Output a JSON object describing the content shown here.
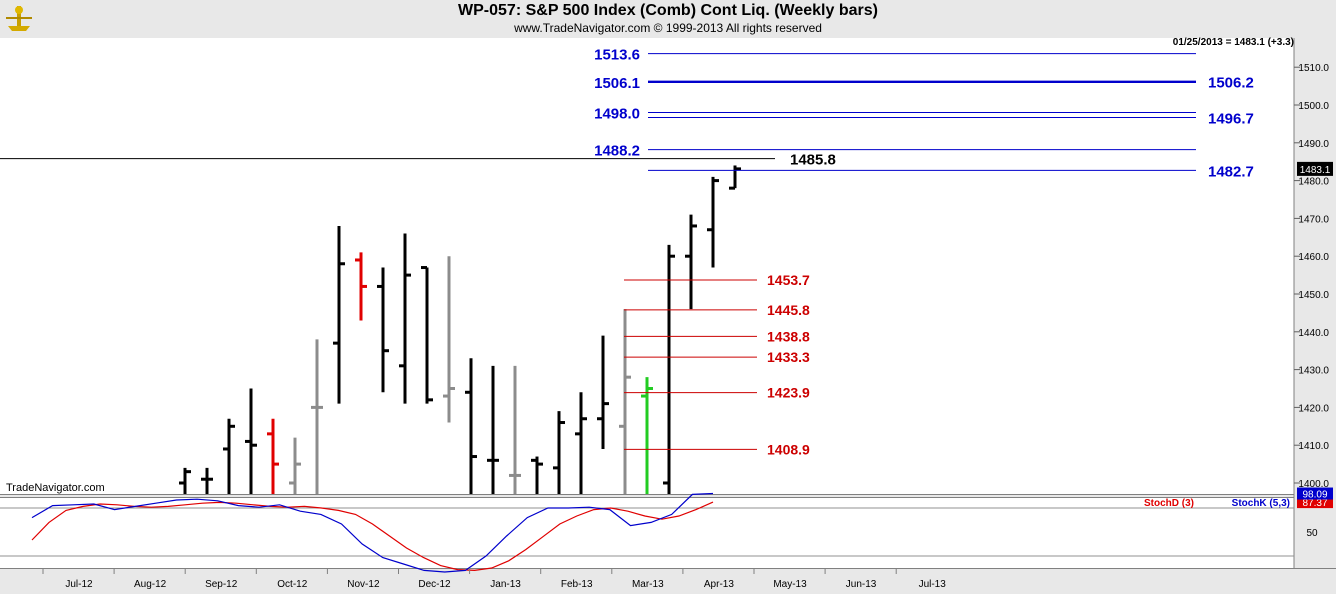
{
  "header": {
    "title": "WP-057:  S&P 500 Index (Comb) Cont Liq.  (Weekly bars)",
    "subtitle": "www.TradeNavigator.com © 1999-2013 All rights reserved",
    "last_price_label": "01/25/2013 = 1483.1 (+3.3)",
    "watermark": "TradeNavigator.com"
  },
  "colors": {
    "up": "#000000",
    "down_red": "#e00000",
    "down_gray": "#8c8c8c",
    "green": "#22cc22",
    "blue_line": "#0000cc",
    "red_line": "#cc0000",
    "stochD": "#e00000",
    "stochK": "#0000cc"
  },
  "chart_data": [
    {
      "type": "ohlc",
      "name": "price",
      "x_ticks": [
        "Jul-12",
        "Aug-12",
        "Sep-12",
        "Oct-12",
        "Nov-12",
        "Dec-12",
        "Jan-13",
        "Feb-13",
        "Mar-13",
        "Apr-13",
        "May-13",
        "Jun-13",
        "Jul-13"
      ],
      "y_ticks": [
        1400,
        1410,
        1420,
        1430,
        1440,
        1450,
        1460,
        1470,
        1480,
        1490,
        1500,
        1510
      ],
      "ylim": [
        1397,
        1519
      ],
      "last_price": "1483.1",
      "bars": [
        {
          "o": 1400.0,
          "h": 1404.0,
          "l": 1397.0,
          "c": 1403.0,
          "color": "up"
        },
        {
          "o": 1401.0,
          "h": 1404.0,
          "l": 1397.0,
          "c": 1401.0,
          "color": "up"
        },
        {
          "o": 1409.0,
          "h": 1417.0,
          "l": 1397.0,
          "c": 1415.0,
          "color": "up"
        },
        {
          "o": 1411.0,
          "h": 1425.0,
          "l": 1397.0,
          "c": 1410.0,
          "color": "up"
        },
        {
          "o": 1413.0,
          "h": 1417.0,
          "l": 1397.0,
          "c": 1405.0,
          "color": "down_red"
        },
        {
          "o": 1400.0,
          "h": 1412.0,
          "l": 1397.0,
          "c": 1405.0,
          "color": "down_gray"
        },
        {
          "o": 1420.0,
          "h": 1438.0,
          "l": 1397.0,
          "c": 1420.0,
          "color": "down_gray"
        },
        {
          "o": 1437.0,
          "h": 1468.0,
          "l": 1421.0,
          "c": 1458.0,
          "color": "up"
        },
        {
          "o": 1459.0,
          "h": 1461.0,
          "l": 1443.0,
          "c": 1452.0,
          "color": "down_red"
        },
        {
          "o": 1452.0,
          "h": 1457.0,
          "l": 1424.0,
          "c": 1435.0,
          "color": "up"
        },
        {
          "o": 1431.0,
          "h": 1466.0,
          "l": 1421.0,
          "c": 1455.0,
          "color": "up"
        },
        {
          "o": 1457.0,
          "h": 1457.0,
          "l": 1421.0,
          "c": 1422.0,
          "color": "up"
        },
        {
          "o": 1423.0,
          "h": 1460.0,
          "l": 1416.0,
          "c": 1425.0,
          "color": "down_gray"
        },
        {
          "o": 1424.0,
          "h": 1433.0,
          "l": 1397.0,
          "c": 1407.0,
          "color": "up"
        },
        {
          "o": 1406.0,
          "h": 1431.0,
          "l": 1397.0,
          "c": 1406.0,
          "color": "up"
        },
        {
          "o": 1402.0,
          "h": 1431.0,
          "l": 1397.0,
          "c": 1402.0,
          "color": "down_gray"
        },
        {
          "o": 1406.0,
          "h": 1407.0,
          "l": 1397.0,
          "c": 1405.0,
          "color": "up"
        },
        {
          "o": 1404.0,
          "h": 1419.0,
          "l": 1397.0,
          "c": 1416.0,
          "color": "up"
        },
        {
          "o": 1413.0,
          "h": 1424.0,
          "l": 1397.0,
          "c": 1417.0,
          "color": "up"
        },
        {
          "o": 1417.0,
          "h": 1439.0,
          "l": 1409.0,
          "c": 1421.0,
          "color": "up"
        },
        {
          "o": 1415.0,
          "h": 1446.0,
          "l": 1397.0,
          "c": 1428.0,
          "color": "down_gray"
        },
        {
          "o": 1423.0,
          "h": 1428.0,
          "l": 1397.0,
          "c": 1425.0,
          "color": "green"
        },
        {
          "o": 1400.0,
          "h": 1463.0,
          "l": 1397.0,
          "c": 1460.0,
          "color": "up"
        },
        {
          "o": 1460.0,
          "h": 1471.0,
          "l": 1446.0,
          "c": 1468.0,
          "color": "up"
        },
        {
          "o": 1467.0,
          "h": 1481.0,
          "l": 1457.0,
          "c": 1480.0,
          "color": "up"
        },
        {
          "o": 1478.0,
          "h": 1484.0,
          "l": 1478.0,
          "c": 1483.1,
          "color": "up"
        }
      ],
      "levels_blue": [
        {
          "value": 1513.6,
          "label": "1513.6",
          "side": "left"
        },
        {
          "value": 1506.1,
          "label": "1506.1",
          "side": "left"
        },
        {
          "value": 1506.2,
          "label": "1506.2",
          "side": "right"
        },
        {
          "value": 1498.0,
          "label": "1498.0",
          "side": "left"
        },
        {
          "value": 1496.7,
          "label": "1496.7",
          "side": "right"
        },
        {
          "value": 1488.2,
          "label": "1488.2",
          "side": "left"
        },
        {
          "value": 1482.7,
          "label": "1482.7",
          "side": "right"
        }
      ],
      "level_black": {
        "value": 1485.8,
        "label": "1485.8"
      },
      "levels_red": [
        {
          "value": 1453.7,
          "label": "1453.7"
        },
        {
          "value": 1445.8,
          "label": "1445.8"
        },
        {
          "value": 1438.8,
          "label": "1438.8"
        },
        {
          "value": 1433.3,
          "label": "1433.3"
        },
        {
          "value": 1423.9,
          "label": "1423.9"
        },
        {
          "value": 1408.9,
          "label": "1408.9"
        }
      ]
    },
    {
      "type": "line",
      "name": "stochastic",
      "ylim": [
        0,
        100
      ],
      "y_ticks": [
        50
      ],
      "reference_lines": [
        20,
        80
      ],
      "series": [
        {
          "name": "StochD (3)",
          "color": "#e00000",
          "last_label": "87.37",
          "values": [
            40,
            62,
            77,
            82,
            85,
            84,
            82,
            81,
            82,
            84,
            86,
            87,
            86,
            84,
            82,
            81,
            82,
            80,
            77,
            72,
            60,
            45,
            30,
            18,
            8,
            3,
            2,
            5,
            14,
            28,
            44,
            60,
            70,
            78,
            80,
            76,
            70,
            66,
            70,
            78,
            87.37
          ]
        },
        {
          "name": "StochK (5,3)",
          "color": "#0000cc",
          "last_label": "98.09",
          "values": [
            68,
            83,
            84,
            85,
            78,
            82,
            86,
            90,
            91,
            89,
            83,
            81,
            84,
            76,
            72,
            60,
            35,
            18,
            10,
            2,
            0,
            2,
            20,
            45,
            68,
            80,
            80,
            81,
            78,
            58,
            62,
            72,
            97,
            98.09
          ]
        }
      ]
    }
  ]
}
